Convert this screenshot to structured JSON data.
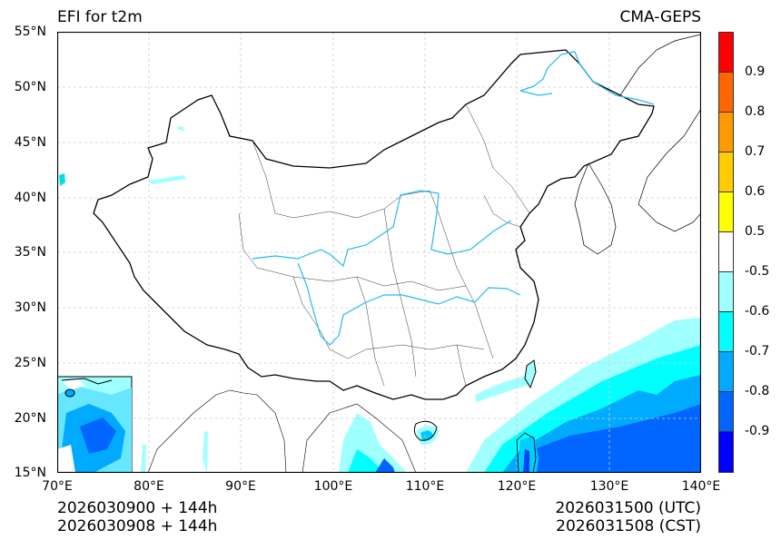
{
  "header": {
    "title_left": "EFI for t2m",
    "title_right": "CMA-GEPS"
  },
  "axes": {
    "y_ticks": [
      "55°N",
      "50°N",
      "45°N",
      "40°N",
      "35°N",
      "30°N",
      "25°N",
      "20°N",
      "15°N"
    ],
    "x_ticks": [
      "70°E",
      "80°E",
      "90°E",
      "100°E",
      "110°E",
      "120°E",
      "130°E",
      "140°E"
    ]
  },
  "footer": {
    "init_utc": "2026030900 + 144h",
    "init_cst": "2026030908 + 144h",
    "valid_utc": "2026031500 (UTC)",
    "valid_cst": "2026031508 (CST)"
  },
  "colorbar": {
    "segments": [
      {
        "color": "#ff0000"
      },
      {
        "color": "#ff6600"
      },
      {
        "color": "#ff9900"
      },
      {
        "color": "#ffcc00"
      },
      {
        "color": "#ffff00"
      },
      {
        "color": "#ffffff"
      },
      {
        "color": "#a0ffff"
      },
      {
        "color": "#00ffff"
      },
      {
        "color": "#00aaff"
      },
      {
        "color": "#0066ff"
      },
      {
        "color": "#0000ff"
      }
    ],
    "labels": [
      "0.9",
      "0.8",
      "0.7",
      "0.6",
      "0.5",
      "-0.5",
      "-0.6",
      "-0.7",
      "-0.8",
      "-0.9"
    ]
  },
  "map": {
    "extent": {
      "lon_min": 70,
      "lon_max": 140,
      "lat_min": 15,
      "lat_max": 55
    },
    "river_color": "#22bbee",
    "border_color": "#000000",
    "grid_color": "#cccccc"
  }
}
